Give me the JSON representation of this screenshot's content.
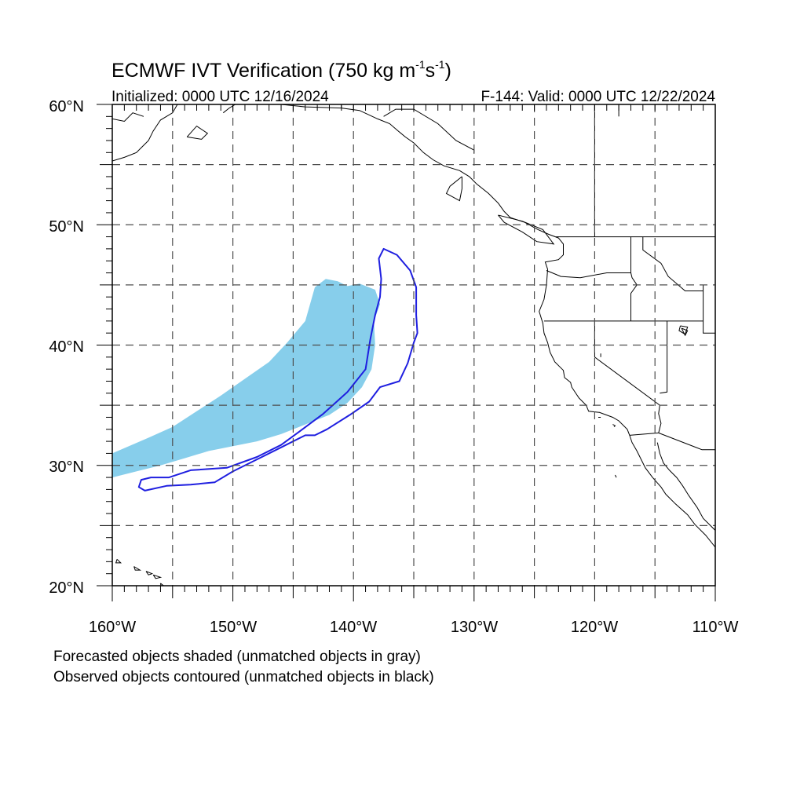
{
  "title": {
    "main": "ECMWF IVT Verification (750 kg m",
    "exp1": "-1",
    "unit_s": "s",
    "exp2": "-1",
    "close": ")"
  },
  "subtitle": {
    "initialized": "Initialized: 0000 UTC 12/16/2024",
    "valid": "F-144: Valid: 0000 UTC 12/22/2024"
  },
  "map": {
    "lon_range": [
      -160,
      -110
    ],
    "lat_range": [
      20,
      60
    ],
    "gridlines": "dashed",
    "lat_labels": [
      "60°N",
      "50°N",
      "40°N",
      "30°N",
      "20°N"
    ],
    "lon_labels": [
      "160°W",
      "150°W",
      "140°W",
      "130°W",
      "120°W",
      "110°W"
    ],
    "colors": {
      "forecast_fill": "#87ceeb",
      "observed_contour": "#1f1fe0",
      "coastline": "#000000",
      "grid": "#4d4d4d"
    },
    "forecast_object": [
      [
        -160,
        29.0
      ],
      [
        -158,
        29.5
      ],
      [
        -156,
        30.0
      ],
      [
        -154,
        30.6
      ],
      [
        -152,
        31.2
      ],
      [
        -150,
        31.6
      ],
      [
        -148,
        32.0
      ],
      [
        -146,
        32.6
      ],
      [
        -144,
        33.4
      ],
      [
        -142,
        34.2
      ],
      [
        -140.5,
        35.2
      ],
      [
        -139.3,
        36.5
      ],
      [
        -138.5,
        38.0
      ],
      [
        -138.2,
        40.0
      ],
      [
        -138.3,
        42.0
      ],
      [
        -137.8,
        43.4
      ],
      [
        -138.2,
        44.6
      ],
      [
        -139.5,
        45.1
      ],
      [
        -140.5,
        44.9
      ],
      [
        -141.3,
        45.3
      ],
      [
        -142.3,
        45.5
      ],
      [
        -143.2,
        44.8
      ],
      [
        -144.0,
        42.0
      ],
      [
        -145.5,
        40.2
      ],
      [
        -147.0,
        38.6
      ],
      [
        -149.0,
        37.2
      ],
      [
        -151.0,
        35.8
      ],
      [
        -153.0,
        34.5
      ],
      [
        -155.0,
        33.2
      ],
      [
        -157.0,
        32.3
      ],
      [
        -160,
        31.0
      ]
    ],
    "observed_object": [
      [
        -155.3,
        29.0
      ],
      [
        -153.5,
        29.6
      ],
      [
        -150.5,
        29.8
      ],
      [
        -148.0,
        30.7
      ],
      [
        -146.0,
        31.7
      ],
      [
        -144.5,
        32.8
      ],
      [
        -142.5,
        34.3
      ],
      [
        -140.5,
        36.1
      ],
      [
        -139.0,
        38.0
      ],
      [
        -138.6,
        40.5
      ],
      [
        -138.2,
        42.5
      ],
      [
        -137.8,
        44.0
      ],
      [
        -137.7,
        45.5
      ],
      [
        -137.9,
        47.2
      ],
      [
        -137.5,
        48.0
      ],
      [
        -136.4,
        47.5
      ],
      [
        -135.3,
        46.2
      ],
      [
        -134.8,
        44.8
      ],
      [
        -134.8,
        42.5
      ],
      [
        -134.7,
        41.0
      ],
      [
        -135.0,
        40.2
      ],
      [
        -135.5,
        38.5
      ],
      [
        -136.2,
        37.0
      ],
      [
        -137.8,
        36.5
      ],
      [
        -138.7,
        35.3
      ],
      [
        -140.3,
        34.2
      ],
      [
        -142.2,
        33.0
      ],
      [
        -143.2,
        32.5
      ],
      [
        -144.0,
        32.5
      ],
      [
        -146.0,
        31.5
      ],
      [
        -148.0,
        30.5
      ],
      [
        -150.0,
        29.5
      ],
      [
        -151.5,
        28.6
      ],
      [
        -153.5,
        28.4
      ],
      [
        -155.5,
        28.3
      ],
      [
        -157.3,
        27.9
      ],
      [
        -157.8,
        28.2
      ],
      [
        -157.6,
        28.8
      ],
      [
        -156.8,
        29.0
      ]
    ],
    "coastlines": [
      [
        [
          -160,
          55.3
        ],
        [
          -159.0,
          55.6
        ],
        [
          -158.0,
          56.0
        ],
        [
          -157.5,
          56.5
        ],
        [
          -157.0,
          57.0
        ],
        [
          -156.6,
          57.8
        ],
        [
          -156.0,
          58.7
        ],
        [
          -155.0,
          59.3
        ],
        [
          -154.6,
          60.0
        ]
      ],
      [
        [
          -160,
          58.8
        ],
        [
          -159.0,
          58.6
        ],
        [
          -158.3,
          59.3
        ],
        [
          -157.4,
          59.0
        ]
      ],
      [
        [
          -150.8,
          59.3
        ],
        [
          -150.3,
          59.7
        ],
        [
          -149.8,
          60.0
        ]
      ],
      [
        [
          -153.8,
          57.3
        ],
        [
          -152.6,
          57.1
        ],
        [
          -152.1,
          57.6
        ],
        [
          -153.0,
          58.2
        ],
        [
          -153.8,
          57.3
        ]
      ],
      [
        [
          -146.0,
          60.0
        ],
        [
          -144.0,
          59.8
        ],
        [
          -141.0,
          59.7
        ],
        [
          -139.5,
          59.5
        ],
        [
          -138.0,
          58.8
        ],
        [
          -137.0,
          58.4
        ],
        [
          -136.3,
          57.8
        ],
        [
          -135.7,
          57.3
        ],
        [
          -135.0,
          56.8
        ],
        [
          -134.2,
          56.0
        ],
        [
          -133.4,
          55.4
        ],
        [
          -132.5,
          54.9
        ],
        [
          -131.2,
          54.5
        ],
        [
          -130.4,
          54.0
        ],
        [
          -129.8,
          53.4
        ],
        [
          -128.8,
          52.6
        ],
        [
          -128.0,
          51.8
        ],
        [
          -127.5,
          51.1
        ],
        [
          -127.0,
          50.6
        ],
        [
          -125.8,
          50.2
        ],
        [
          -124.7,
          49.6
        ],
        [
          -123.8,
          49.2
        ],
        [
          -123.0,
          48.9
        ],
        [
          -122.6,
          48.4
        ],
        [
          -122.6,
          47.5
        ],
        [
          -123.0,
          47.1
        ],
        [
          -124.1,
          46.9
        ],
        [
          -123.9,
          46.3
        ],
        [
          -124.0,
          45.0
        ],
        [
          -124.2,
          43.8
        ],
        [
          -124.6,
          42.8
        ],
        [
          -124.3,
          41.8
        ],
        [
          -124.2,
          41.0
        ],
        [
          -123.9,
          40.2
        ],
        [
          -123.7,
          39.4
        ],
        [
          -123.3,
          38.6
        ],
        [
          -122.6,
          37.9
        ],
        [
          -122.5,
          37.3
        ],
        [
          -122.0,
          36.9
        ],
        [
          -121.9,
          36.5
        ],
        [
          -121.3,
          35.6
        ],
        [
          -120.7,
          35.0
        ],
        [
          -120.5,
          34.5
        ],
        [
          -119.6,
          34.4
        ],
        [
          -118.5,
          34.0
        ],
        [
          -118.0,
          33.7
        ],
        [
          -117.3,
          33.0
        ],
        [
          -117.1,
          32.5
        ],
        [
          -116.9,
          31.9
        ],
        [
          -116.5,
          31.2
        ],
        [
          -116.1,
          30.4
        ],
        [
          -115.8,
          29.8
        ],
        [
          -115.2,
          29.0
        ],
        [
          -114.5,
          28.2
        ],
        [
          -114.1,
          27.6
        ],
        [
          -113.3,
          26.8
        ],
        [
          -112.3,
          25.9
        ],
        [
          -111.7,
          25.1
        ],
        [
          -110.8,
          24.2
        ],
        [
          -110.0,
          23.2
        ]
      ],
      [
        [
          -114.8,
          31.9
        ],
        [
          -114.6,
          31.0
        ],
        [
          -114.3,
          30.2
        ],
        [
          -113.8,
          29.6
        ],
        [
          -113.2,
          29.0
        ],
        [
          -112.7,
          28.3
        ],
        [
          -112.2,
          27.5
        ],
        [
          -111.5,
          26.5
        ],
        [
          -111.0,
          25.6
        ],
        [
          -110.0,
          24.6
        ]
      ],
      [
        [
          -131.0,
          54.0
        ],
        [
          -132.0,
          53.2
        ],
        [
          -132.3,
          52.6
        ],
        [
          -131.2,
          52.0
        ],
        [
          -131.0,
          53.0
        ],
        [
          -131.0,
          54.0
        ]
      ],
      [
        [
          -128.0,
          50.8
        ],
        [
          -126.0,
          50.3
        ],
        [
          -124.3,
          49.6
        ],
        [
          -123.4,
          48.4
        ],
        [
          -124.8,
          48.6
        ],
        [
          -126.0,
          49.4
        ],
        [
          -127.5,
          50.2
        ],
        [
          -128.0,
          50.8
        ]
      ],
      [
        [
          -156.0,
          20.2
        ],
        [
          -155.1,
          19.5
        ],
        [
          -155.8,
          19.1
        ],
        [
          -156.0,
          20.2
        ]
      ],
      [
        [
          -159.6,
          22.2
        ],
        [
          -159.3,
          21.9
        ],
        [
          -159.7,
          21.9
        ],
        [
          -159.6,
          22.2
        ]
      ],
      [
        [
          -158.2,
          21.6
        ],
        [
          -157.7,
          21.3
        ],
        [
          -158.1,
          21.3
        ],
        [
          -158.2,
          21.6
        ]
      ],
      [
        [
          -157.2,
          21.2
        ],
        [
          -156.7,
          21.0
        ],
        [
          -157.0,
          20.9
        ],
        [
          -157.2,
          21.2
        ]
      ],
      [
        [
          -156.6,
          20.9
        ],
        [
          -156.0,
          20.7
        ],
        [
          -156.4,
          20.6
        ],
        [
          -156.6,
          20.9
        ]
      ],
      [
        [
          -112.8,
          41.4
        ],
        [
          -112.3,
          41.2
        ],
        [
          -112.5,
          40.8
        ],
        [
          -112.8,
          41.4
        ]
      ],
      [
        [
          -118.5,
          33.4
        ],
        [
          -118.3,
          33.3
        ],
        [
          -118.4,
          33.2
        ]
      ],
      [
        [
          -119.5,
          34.0
        ],
        [
          -119.7,
          34.0
        ]
      ],
      [
        [
          -118.3,
          29.2
        ],
        [
          -118.2,
          29.0
        ]
      ]
    ],
    "boundaries": [
      [
        [
          -141,
          60
        ],
        [
          -141,
          59.7
        ]
      ],
      [
        [
          -130.0,
          55.9
        ],
        [
          -130.0,
          56.2
        ],
        [
          -131.5,
          57.0
        ],
        [
          -133.0,
          58.4
        ],
        [
          -135.0,
          59.6
        ],
        [
          -136.5,
          59.6
        ],
        [
          -137.5,
          59.0
        ]
      ],
      [
        [
          -123.2,
          49.0
        ],
        [
          -110,
          49.0
        ]
      ],
      [
        [
          -117.0,
          49.0
        ],
        [
          -117.0,
          46.0
        ],
        [
          -116.9,
          45.6
        ],
        [
          -116.5,
          45.0
        ],
        [
          -117.0,
          44.3
        ],
        [
          -117.0,
          42.0
        ]
      ],
      [
        [
          -124.0,
          46.2
        ],
        [
          -122.8,
          45.7
        ],
        [
          -121.2,
          45.6
        ],
        [
          -119.0,
          46.0
        ],
        [
          -117.0,
          46.0
        ]
      ],
      [
        [
          -124.2,
          42.0
        ],
        [
          -111.0,
          42.0
        ]
      ],
      [
        [
          -120.0,
          42.0
        ],
        [
          -120.0,
          39.0
        ],
        [
          -114.6,
          35.0
        ]
      ],
      [
        [
          -114.6,
          35.0
        ],
        [
          -114.7,
          34.3
        ],
        [
          -114.5,
          33.5
        ],
        [
          -114.7,
          32.7
        ]
      ],
      [
        [
          -117.1,
          32.5
        ],
        [
          -114.7,
          32.7
        ]
      ],
      [
        [
          -114.7,
          32.7
        ],
        [
          -111.1,
          31.3
        ],
        [
          -110,
          31.3
        ]
      ],
      [
        [
          -114.0,
          42.0
        ],
        [
          -114.0,
          37.0
        ],
        [
          -114.0,
          36.1
        ],
        [
          -114.6,
          36.0
        ]
      ],
      [
        [
          -111.0,
          45.0
        ],
        [
          -111.0,
          41.0
        ],
        [
          -110,
          41.0
        ]
      ],
      [
        [
          -116.0,
          49.0
        ],
        [
          -116.0,
          47.9
        ],
        [
          -114.5,
          46.8
        ],
        [
          -113.9,
          45.7
        ],
        [
          -112.5,
          44.5
        ],
        [
          -111.0,
          44.5
        ]
      ],
      [
        [
          -118.0,
          60.0
        ],
        [
          -118.0,
          59.0
        ]
      ],
      [
        [
          -120.0,
          60.0
        ],
        [
          -120.0,
          49.0
        ]
      ]
    ],
    "lakes": [
      [
        [
          -112.9,
          41.6
        ],
        [
          -112.3,
          41.5
        ],
        [
          -112.5,
          40.9
        ],
        [
          -113.0,
          41.2
        ],
        [
          -112.9,
          41.6
        ]
      ],
      [
        [
          -119.5,
          39.3
        ],
        [
          -119.5,
          39.0
        ]
      ]
    ]
  },
  "notes": [
    "Forecasted objects shaded (unmatched objects in gray)",
    "Observed objects contoured (unmatched objects in black)"
  ]
}
